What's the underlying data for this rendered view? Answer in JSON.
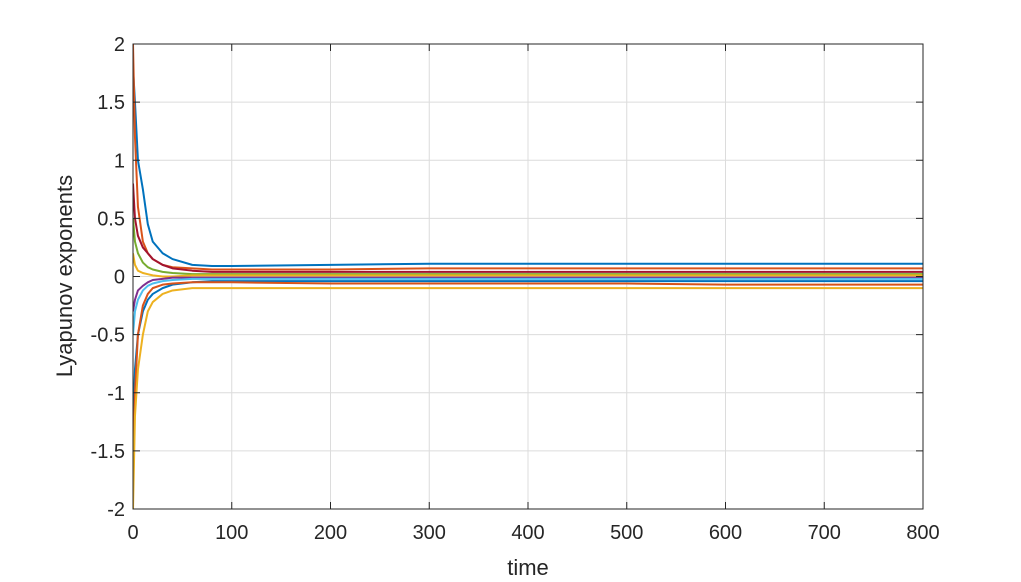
{
  "chart_data": {
    "type": "line",
    "title": "",
    "xlabel": "time",
    "ylabel": "Lyapunov exponents",
    "xlim": [
      0,
      800
    ],
    "ylim": [
      -2,
      2
    ],
    "x_ticks": [
      0,
      100,
      200,
      300,
      400,
      500,
      600,
      700,
      800
    ],
    "y_ticks": [
      -2,
      -1.5,
      -1,
      -0.5,
      0,
      0.5,
      1,
      1.5,
      2
    ],
    "y_tick_labels": [
      "-2",
      "-1.5",
      "-1",
      "-0.5",
      "0",
      "0.5",
      "1",
      "1.5",
      "2"
    ],
    "grid": true,
    "legend": "none",
    "series": [
      {
        "color": "#0072BD",
        "x": [
          0,
          2,
          5,
          10,
          15,
          20,
          30,
          40,
          60,
          80,
          100,
          200,
          300,
          400,
          500,
          600,
          700,
          800
        ],
        "y": [
          1.8,
          1.5,
          1.0,
          0.75,
          0.45,
          0.3,
          0.2,
          0.15,
          0.1,
          0.09,
          0.09,
          0.1,
          0.11,
          0.11,
          0.11,
          0.11,
          0.11,
          0.11
        ]
      },
      {
        "color": "#D95319",
        "x": [
          0,
          2,
          5,
          10,
          15,
          20,
          30,
          40,
          60,
          80,
          100,
          200,
          300,
          400,
          500,
          600,
          700,
          800
        ],
        "y": [
          2.0,
          1.2,
          0.6,
          0.3,
          0.2,
          0.15,
          0.1,
          0.08,
          0.07,
          0.06,
          0.06,
          0.06,
          0.07,
          0.07,
          0.07,
          0.07,
          0.07,
          0.07
        ]
      },
      {
        "color": "#A2142F",
        "x": [
          0,
          2,
          5,
          10,
          15,
          20,
          30,
          40,
          60,
          80,
          100,
          200,
          300,
          400,
          500,
          600,
          700,
          800
        ],
        "y": [
          0.8,
          0.5,
          0.35,
          0.25,
          0.2,
          0.15,
          0.1,
          0.07,
          0.05,
          0.04,
          0.04,
          0.04,
          0.04,
          0.04,
          0.04,
          0.04,
          0.04,
          0.04
        ]
      },
      {
        "color": "#77AC30",
        "x": [
          0,
          2,
          5,
          10,
          15,
          20,
          30,
          40,
          60,
          80,
          100,
          200,
          300,
          400,
          500,
          600,
          700,
          800
        ],
        "y": [
          0.5,
          0.3,
          0.2,
          0.12,
          0.08,
          0.06,
          0.04,
          0.03,
          0.02,
          0.02,
          0.02,
          0.02,
          0.02,
          0.02,
          0.02,
          0.02,
          0.02,
          0.02
        ]
      },
      {
        "color": "#EDB120",
        "x": [
          0,
          2,
          5,
          10,
          15,
          20,
          30,
          40,
          60,
          80,
          100,
          200,
          300,
          400,
          500,
          600,
          700,
          800
        ],
        "y": [
          0.2,
          0.1,
          0.05,
          0.03,
          0.02,
          0.01,
          0.0,
          0.0,
          0.01,
          0.01,
          0.01,
          0.01,
          0.01,
          0.01,
          0.01,
          0.01,
          0.01,
          0.01
        ]
      },
      {
        "color": "#7E2F8E",
        "x": [
          0,
          2,
          5,
          10,
          15,
          20,
          30,
          40,
          60,
          80,
          100,
          200,
          300,
          400,
          500,
          600,
          700,
          800
        ],
        "y": [
          -0.3,
          -0.2,
          -0.12,
          -0.08,
          -0.05,
          -0.03,
          -0.02,
          -0.01,
          -0.01,
          -0.01,
          -0.01,
          -0.01,
          -0.01,
          -0.01,
          -0.01,
          -0.01,
          -0.01,
          -0.01
        ]
      },
      {
        "color": "#4DBEEE",
        "x": [
          0,
          2,
          5,
          10,
          15,
          20,
          30,
          40,
          60,
          80,
          100,
          200,
          300,
          400,
          500,
          600,
          700,
          800
        ],
        "y": [
          -0.5,
          -0.3,
          -0.2,
          -0.12,
          -0.08,
          -0.06,
          -0.04,
          -0.03,
          -0.02,
          -0.02,
          -0.02,
          -0.02,
          -0.02,
          -0.02,
          -0.02,
          -0.02,
          -0.02,
          -0.02
        ]
      },
      {
        "color": "#0072BD",
        "x": [
          0,
          2,
          5,
          10,
          15,
          20,
          30,
          40,
          60,
          80,
          100,
          200,
          300,
          400,
          500,
          600,
          700,
          800
        ],
        "y": [
          -1.3,
          -0.8,
          -0.5,
          -0.3,
          -0.2,
          -0.15,
          -0.1,
          -0.07,
          -0.05,
          -0.04,
          -0.04,
          -0.04,
          -0.04,
          -0.04,
          -0.04,
          -0.04,
          -0.04,
          -0.04
        ]
      },
      {
        "color": "#D95319",
        "x": [
          0,
          2,
          5,
          10,
          15,
          20,
          30,
          40,
          60,
          80,
          100,
          200,
          300,
          400,
          500,
          600,
          700,
          800
        ],
        "y": [
          -1.8,
          -1.0,
          -0.5,
          -0.25,
          -0.15,
          -0.1,
          -0.07,
          -0.06,
          -0.05,
          -0.05,
          -0.05,
          -0.06,
          -0.06,
          -0.06,
          -0.06,
          -0.07,
          -0.07,
          -0.07
        ]
      },
      {
        "color": "#EDB120",
        "x": [
          0,
          2,
          5,
          10,
          15,
          20,
          30,
          40,
          60,
          80,
          100,
          200,
          300,
          400,
          500,
          600,
          700,
          800
        ],
        "y": [
          -2.0,
          -1.2,
          -0.8,
          -0.5,
          -0.3,
          -0.22,
          -0.15,
          -0.12,
          -0.1,
          -0.1,
          -0.1,
          -0.1,
          -0.1,
          -0.1,
          -0.1,
          -0.1,
          -0.1,
          -0.1
        ]
      }
    ]
  }
}
